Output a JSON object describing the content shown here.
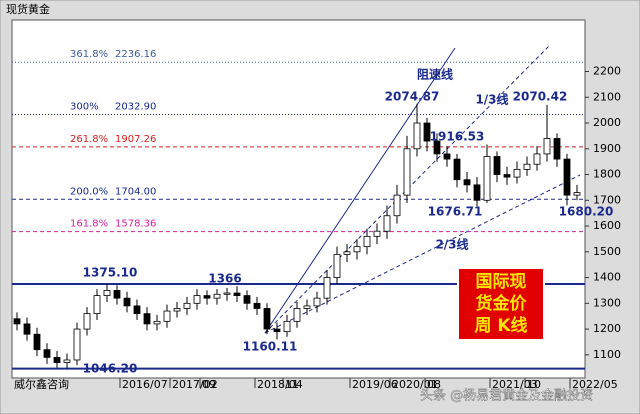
{
  "chart_data": {
    "type": "candlestick",
    "title": "现货黄金",
    "source": "威尔鑫咨询",
    "box_text": [
      "国际现",
      "货金价",
      "周 K线"
    ],
    "watermark": "头条 @杨易君黄金及金融投资",
    "xlim": [
      -0.5,
      56.8
    ],
    "ylim": [
      1010,
      2400
    ],
    "yticks": [
      1100,
      1200,
      1300,
      1400,
      1500,
      1600,
      1700,
      1800,
      1900,
      2000,
      2100,
      2200
    ],
    "xticks": [
      {
        "value": 10.3,
        "label": "2016/07"
      },
      {
        "value": 15.3,
        "label": "2017/02"
      },
      {
        "value": 18.3,
        "label": "09"
      },
      {
        "value": 23.8,
        "label": "2018/04"
      },
      {
        "value": 26.6,
        "label": "11"
      },
      {
        "value": 33.3,
        "label": "2019/06"
      },
      {
        "value": 37.3,
        "label": "2020/01"
      },
      {
        "value": 40.8,
        "label": "08"
      },
      {
        "value": 47.3,
        "label": "2021/03"
      },
      {
        "value": 50.8,
        "label": "10"
      },
      {
        "value": 55.3,
        "label": "2022/05"
      }
    ],
    "open": [
      1240,
      1220,
      1180,
      1120,
      1090,
      1070,
      1080,
      1200,
      1260,
      1330,
      1350,
      1320,
      1290,
      1260,
      1220,
      1230,
      1270,
      1280,
      1300,
      1330,
      1320,
      1335,
      1340,
      1330,
      1300,
      1280,
      1200,
      1190,
      1230,
      1280,
      1290,
      1320,
      1400,
      1490,
      1500,
      1520,
      1560,
      1580,
      1640,
      1720,
      1900,
      2000,
      1930,
      1880,
      1860,
      1780,
      1760,
      1700,
      1870,
      1800,
      1790,
      1820,
      1840,
      1880,
      1940,
      1860,
      1720
    ],
    "high": [
      1265,
      1245,
      1205,
      1145,
      1115,
      1105,
      1225,
      1285,
      1355,
      1375.1,
      1370,
      1345,
      1315,
      1285,
      1255,
      1295,
      1305,
      1325,
      1355,
      1350,
      1355,
      1360,
      1366,
      1350,
      1325,
      1300,
      1225,
      1255,
      1305,
      1315,
      1345,
      1430,
      1520,
      1530,
      1550,
      1590,
      1610,
      1680,
      1760,
      1950,
      2074.87,
      2020,
      1960,
      1910,
      1880,
      1810,
      1790,
      1916.53,
      1890,
      1830,
      1850,
      1870,
      1910,
      2070.42,
      1960,
      1880,
      1760
    ],
    "low": [
      1195,
      1155,
      1095,
      1065,
      1050,
      1046.2,
      1060,
      1175,
      1235,
      1305,
      1295,
      1265,
      1235,
      1195,
      1195,
      1205,
      1245,
      1255,
      1275,
      1295,
      1295,
      1310,
      1305,
      1275,
      1255,
      1180,
      1160.11,
      1170,
      1205,
      1255,
      1265,
      1295,
      1375,
      1460,
      1470,
      1490,
      1530,
      1550,
      1610,
      1690,
      1870,
      1890,
      1850,
      1830,
      1750,
      1730,
      1676.71,
      1690,
      1770,
      1760,
      1765,
      1795,
      1815,
      1850,
      1830,
      1680.2,
      1700
    ],
    "close": [
      1220,
      1180,
      1120,
      1090,
      1070,
      1080,
      1200,
      1260,
      1330,
      1350,
      1320,
      1290,
      1260,
      1220,
      1230,
      1270,
      1280,
      1300,
      1330,
      1320,
      1335,
      1340,
      1330,
      1300,
      1280,
      1200,
      1190,
      1230,
      1280,
      1290,
      1320,
      1400,
      1490,
      1500,
      1520,
      1560,
      1580,
      1640,
      1720,
      1900,
      2000,
      1930,
      1880,
      1860,
      1780,
      1760,
      1700,
      1870,
      1800,
      1790,
      1820,
      1840,
      1880,
      1940,
      1860,
      1720,
      1730
    ],
    "levels": [
      {
        "ratio": "361.8%",
        "value": 2236.16,
        "label": "2236.16",
        "color": "#3a5a9a"
      },
      {
        "ratio": "300%",
        "value": 2032.9,
        "label": "2032.90",
        "color": "#1a2a8c"
      },
      {
        "ratio": "261.8%",
        "value": 1907.26,
        "label": "1907.26",
        "color": "#d02020"
      },
      {
        "ratio": "200.0%",
        "value": 1704,
        "label": "1704.00",
        "color": "#1a2a8c"
      },
      {
        "ratio": "161.8%",
        "value": 1578.36,
        "label": "1578.36",
        "color": "#d020a0"
      }
    ],
    "support_lines": [
      1375.1,
      1046.2
    ],
    "annotations": [
      "2074.87",
      "1916.53",
      "2070.42",
      "1676.71",
      "1680.20",
      "1375.10",
      "1366",
      "1160.11",
      "1046.20",
      "阻速线",
      "1/3线",
      "2/3线"
    ]
  }
}
